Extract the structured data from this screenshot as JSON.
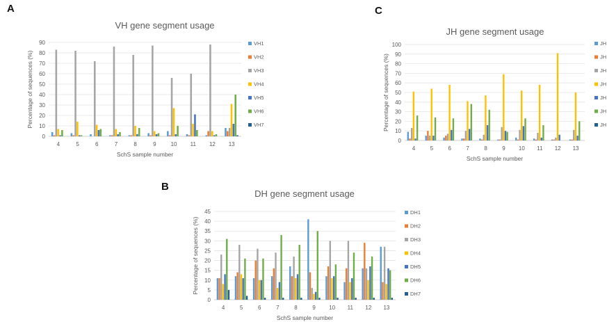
{
  "panels": {
    "A": "A",
    "B": "B",
    "C": "C"
  },
  "chart_data": [
    {
      "id": "A",
      "type": "bar",
      "title": "VH gene segment usage",
      "xlabel": "SchS sample number",
      "ylabel": "Percentage of sequences (%)",
      "ylim": [
        0,
        90
      ],
      "yticks": [
        0,
        10,
        20,
        30,
        40,
        50,
        60,
        70,
        80,
        90
      ],
      "grid": true,
      "legend_position": "right",
      "categories": [
        "4",
        "5",
        "6",
        "7",
        "8",
        "9",
        "10",
        "11",
        "12",
        "13"
      ],
      "series": [
        {
          "name": "VH1",
          "color": "#5b9bd5",
          "values": [
            4,
            3,
            2,
            1,
            1,
            3,
            5,
            2,
            1,
            8
          ]
        },
        {
          "name": "VH2",
          "color": "#ed7d31",
          "values": [
            1,
            1,
            0,
            1,
            1,
            1,
            1,
            1,
            5,
            5
          ]
        },
        {
          "name": "VH3",
          "color": "#a5a5a5",
          "values": [
            83,
            82,
            72,
            86,
            78,
            87,
            56,
            60,
            88,
            8
          ]
        },
        {
          "name": "VH4",
          "color": "#ffc000",
          "values": [
            7,
            14,
            11,
            7,
            10,
            5,
            27,
            12,
            5,
            31
          ]
        },
        {
          "name": "VH5",
          "color": "#4472c4",
          "values": [
            1,
            1,
            6,
            2,
            2,
            2,
            2,
            21,
            1,
            12
          ]
        },
        {
          "name": "VH6",
          "color": "#70ad47",
          "values": [
            6,
            1,
            7,
            4,
            8,
            3,
            10,
            6,
            2,
            40
          ]
        },
        {
          "name": "VH7",
          "color": "#255e91",
          "values": [
            0,
            0,
            0,
            0,
            0,
            0,
            0,
            0,
            0,
            1
          ]
        }
      ]
    },
    {
      "id": "C",
      "type": "bar",
      "title": "JH gene segment usage",
      "xlabel": "SchS sample number",
      "ylabel": "Percentage of sequences (%)",
      "ylim": [
        0,
        100
      ],
      "yticks": [
        0,
        10,
        20,
        30,
        40,
        50,
        60,
        70,
        80,
        90,
        100
      ],
      "grid": true,
      "legend_position": "right",
      "categories": [
        "4",
        "5",
        "6",
        "7",
        "8",
        "9",
        "10",
        "11",
        "12",
        "13"
      ],
      "series": [
        {
          "name": "JH",
          "color": "#5b9bd5",
          "values": [
            9,
            5,
            3,
            2,
            2,
            1,
            3,
            2,
            1,
            1
          ]
        },
        {
          "name": "JH",
          "color": "#ed7d31",
          "values": [
            2,
            10,
            5,
            2,
            1,
            1,
            1,
            1,
            1,
            1
          ]
        },
        {
          "name": "JH",
          "color": "#a5a5a5",
          "values": [
            13,
            5,
            7,
            10,
            6,
            14,
            11,
            8,
            3,
            11
          ]
        },
        {
          "name": "JH",
          "color": "#ffc000",
          "values": [
            51,
            54,
            58,
            41,
            47,
            69,
            52,
            58,
            91,
            50
          ]
        },
        {
          "name": "JH",
          "color": "#4472c4",
          "values": [
            2,
            5,
            11,
            12,
            16,
            10,
            15,
            3,
            6,
            5
          ]
        },
        {
          "name": "JH",
          "color": "#70ad47",
          "values": [
            26,
            24,
            23,
            38,
            32,
            9,
            23,
            16,
            0,
            20
          ]
        },
        {
          "name": "JH",
          "color": "#255e91",
          "values": [
            0,
            0,
            0,
            0,
            0,
            0,
            0,
            0,
            0,
            0
          ]
        }
      ]
    },
    {
      "id": "B",
      "type": "bar",
      "title": "DH gene segment usage",
      "xlabel": "SchS sample number",
      "ylabel": "Percentage of sequences (%)",
      "ylim": [
        0,
        45
      ],
      "yticks": [
        0,
        5,
        10,
        15,
        20,
        25,
        30,
        35,
        40,
        45
      ],
      "grid": true,
      "legend_position": "right",
      "categories": [
        "4",
        "5",
        "6",
        "7",
        "8",
        "9",
        "10",
        "11",
        "12",
        "13"
      ],
      "series": [
        {
          "name": "DH1",
          "color": "#5b9bd5",
          "values": [
            11,
            12,
            11,
            12,
            17,
            41,
            12,
            9,
            16,
            27
          ]
        },
        {
          "name": "DH2",
          "color": "#ed7d31",
          "values": [
            11,
            14,
            20,
            16,
            12,
            14,
            17,
            16,
            29,
            9
          ]
        },
        {
          "name": "DH3",
          "color": "#a5a5a5",
          "values": [
            23,
            28,
            26,
            24,
            22,
            6,
            30,
            30,
            16,
            27
          ]
        },
        {
          "name": "DH4",
          "color": "#ffc000",
          "values": [
            8,
            13,
            10,
            6,
            11,
            3,
            11,
            9,
            10,
            8
          ]
        },
        {
          "name": "DH5",
          "color": "#4472c4",
          "values": [
            13,
            11,
            10,
            9,
            13,
            4,
            12,
            11,
            17,
            16
          ]
        },
        {
          "name": "DH6",
          "color": "#70ad47",
          "values": [
            31,
            21,
            21,
            33,
            28,
            35,
            18,
            24,
            22,
            15
          ]
        },
        {
          "name": "DH7",
          "color": "#255e91",
          "values": [
            5,
            2,
            1,
            1,
            1,
            1,
            1,
            1,
            1,
            1
          ]
        }
      ]
    }
  ]
}
